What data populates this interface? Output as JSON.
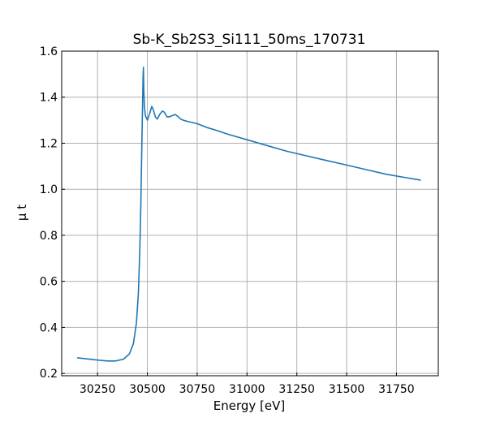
{
  "chart_data": {
    "type": "line",
    "title": "Sb-K_Sb2S3_Si111_50ms_170731",
    "xlabel": "Energy [eV]",
    "ylabel": "μ t",
    "xlim": [
      30070,
      31960
    ],
    "ylim": [
      0.19,
      1.6
    ],
    "grid": true,
    "legend": "none",
    "x_ticks": [
      30250,
      30500,
      30750,
      31000,
      31250,
      31500,
      31750
    ],
    "y_ticks": [
      0.2,
      0.4,
      0.6,
      0.8,
      1.0,
      1.2,
      1.4,
      1.6
    ],
    "x_tick_labels": [
      "30250",
      "30500",
      "30750",
      "31000",
      "31250",
      "31500",
      "31750"
    ],
    "y_tick_labels": [
      "0.2",
      "0.4",
      "0.6",
      "0.8",
      "1.0",
      "1.2",
      "1.4",
      "1.6"
    ],
    "colors": {
      "line": "#1f77b4",
      "grid": "#b0b0b0",
      "frame": "#000000"
    },
    "series": [
      {
        "x": [
          30150,
          30200,
          30250,
          30300,
          30340,
          30380,
          30410,
          30430,
          30445,
          30455,
          30462,
          30467,
          30471,
          30474,
          30476,
          30478,
          30480,
          30482,
          30485,
          30490,
          30500,
          30512,
          30522,
          30530,
          30540,
          30550,
          30562,
          30575,
          30585,
          30598,
          30612,
          30625,
          30640,
          30655,
          30667,
          30680,
          30700,
          30750,
          30800,
          30850,
          30900,
          31000,
          31100,
          31200,
          31300,
          31400,
          31500,
          31600,
          31700,
          31800,
          31870
        ],
        "y": [
          0.268,
          0.263,
          0.258,
          0.254,
          0.254,
          0.262,
          0.285,
          0.33,
          0.42,
          0.55,
          0.73,
          0.93,
          1.12,
          1.28,
          1.38,
          1.48,
          1.53,
          1.44,
          1.36,
          1.32,
          1.3,
          1.33,
          1.36,
          1.345,
          1.315,
          1.305,
          1.325,
          1.34,
          1.335,
          1.315,
          1.315,
          1.32,
          1.325,
          1.315,
          1.305,
          1.3,
          1.295,
          1.285,
          1.268,
          1.255,
          1.24,
          1.215,
          1.19,
          1.165,
          1.145,
          1.125,
          1.105,
          1.085,
          1.065,
          1.05,
          1.04
        ]
      }
    ]
  }
}
